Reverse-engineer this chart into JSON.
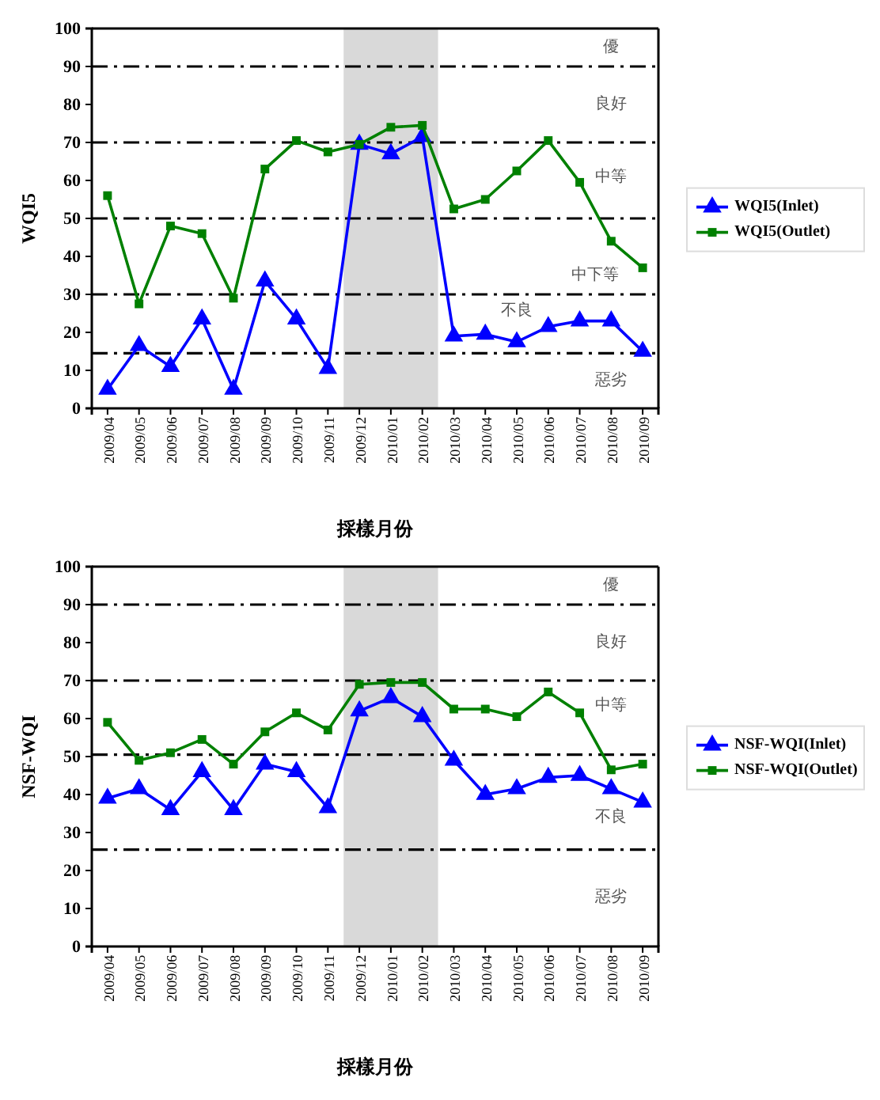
{
  "chart_data": [
    {
      "type": "line",
      "xlabel": "採樣月份",
      "ylabel": "WQI5",
      "categories": [
        "2009/04",
        "2009/05",
        "2009/06",
        "2009/07",
        "2009/08",
        "2009/09",
        "2009/10",
        "2009/11",
        "2009/12",
        "2010/01",
        "2010/02",
        "2010/03",
        "2010/04",
        "2010/05",
        "2010/06",
        "2010/07",
        "2010/08",
        "2010/09"
      ],
      "series": [
        {
          "name": "WQI5(Inlet)",
          "color": "#0000ff",
          "marker": "triangle",
          "values": [
            5,
            16.5,
            11,
            23.5,
            5,
            33.5,
            23.5,
            10.5,
            69.5,
            67,
            71.5,
            19,
            19.5,
            17.5,
            21.5,
            23,
            23,
            15
          ]
        },
        {
          "name": "WQI5(Outlet)",
          "color": "#008000",
          "marker": "square",
          "values": [
            56,
            27.5,
            48,
            46,
            29,
            63,
            70.5,
            67.5,
            69.5,
            74,
            74.5,
            52.5,
            55,
            62.5,
            70.5,
            59.5,
            44,
            37
          ]
        }
      ],
      "ylim": [
        0,
        100
      ],
      "yticks": [
        0,
        10,
        20,
        30,
        40,
        50,
        60,
        70,
        80,
        90,
        100
      ],
      "legend": "right",
      "line_style": "solid",
      "bands": [
        {
          "axis": "x",
          "from": "2009/12",
          "to": "2010/02",
          "color": "#d9d9d9"
        }
      ],
      "ref_lines": [
        {
          "axis": "y",
          "value": 90,
          "line_style": "dashdot"
        },
        {
          "axis": "y",
          "value": 70,
          "line_style": "dashdot"
        },
        {
          "axis": "y",
          "value": 50,
          "line_style": "dashdot"
        },
        {
          "axis": "y",
          "value": 30,
          "line_style": "dashdot"
        },
        {
          "axis": "y",
          "value": 14.5,
          "line_style": "dashdot"
        }
      ],
      "annotations": [
        "優",
        "良好",
        "中等",
        "中下等",
        "不良",
        "惡劣"
      ]
    },
    {
      "type": "line",
      "xlabel": "採樣月份",
      "ylabel": "NSF-WQI",
      "categories": [
        "2009/04",
        "2009/05",
        "2009/06",
        "2009/07",
        "2009/08",
        "2009/09",
        "2009/10",
        "2009/11",
        "2009/12",
        "2010/01",
        "2010/02",
        "2010/03",
        "2010/04",
        "2010/05",
        "2010/06",
        "2010/07",
        "2010/08",
        "2010/09"
      ],
      "series": [
        {
          "name": "NSF-WQI(Inlet)",
          "color": "#0000ff",
          "marker": "triangle",
          "values": [
            39,
            41.5,
            36,
            46,
            36,
            48,
            46,
            36.5,
            62,
            65.5,
            60.5,
            49,
            40,
            41.5,
            44.5,
            45,
            41.5,
            38
          ]
        },
        {
          "name": "NSF-WQI(Outlet)",
          "color": "#008000",
          "marker": "square",
          "values": [
            59,
            49,
            51,
            54.5,
            48,
            56.5,
            61.5,
            57,
            69,
            69.5,
            69.5,
            62.5,
            62.5,
            60.5,
            67,
            61.5,
            46.5,
            48
          ]
        }
      ],
      "ylim": [
        0,
        100
      ],
      "yticks": [
        0,
        10,
        20,
        30,
        40,
        50,
        60,
        70,
        80,
        90,
        100
      ],
      "legend": "right",
      "line_style": "solid",
      "bands": [
        {
          "axis": "x",
          "from": "2009/12",
          "to": "2010/02",
          "color": "#d9d9d9"
        }
      ],
      "ref_lines": [
        {
          "axis": "y",
          "value": 90,
          "line_style": "dashdot"
        },
        {
          "axis": "y",
          "value": 70,
          "line_style": "dashdot"
        },
        {
          "axis": "y",
          "value": 50.5,
          "line_style": "dashdot"
        },
        {
          "axis": "y",
          "value": 25.5,
          "line_style": "dashdot"
        }
      ],
      "annotations": [
        "優",
        "良好",
        "中等",
        "不良",
        "惡劣"
      ]
    }
  ]
}
